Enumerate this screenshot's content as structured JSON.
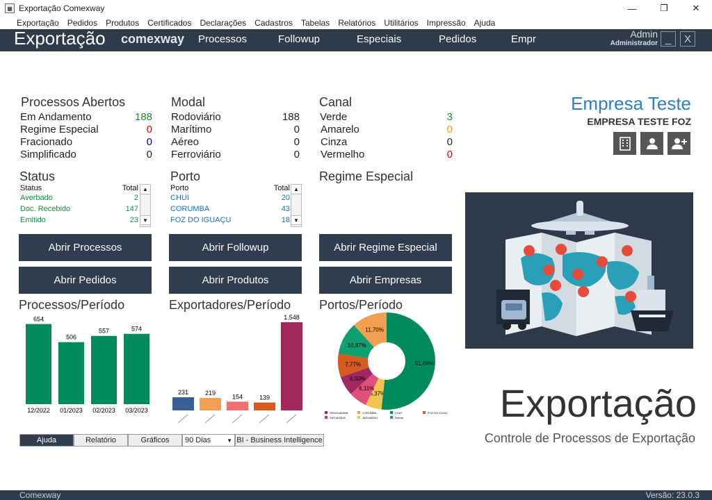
{
  "window": {
    "title": "Exportação Comexway",
    "minimize": "—",
    "maximize": "❐",
    "close": "✕"
  },
  "menu": [
    "Exportação",
    "Pedidos",
    "Produtos",
    "Certificados",
    "Declarações",
    "Cadastros",
    "Tabelas",
    "Relatórios",
    "Utilitários",
    "Impressão",
    "Ajuda"
  ],
  "nav": {
    "brand": "Exportação",
    "brand2": "comexway",
    "items": [
      "Processos",
      "Followup",
      "Especiais",
      "Pedidos",
      "Empr"
    ],
    "user": "Admin",
    "role": "Administrador",
    "min": "_",
    "close": "X"
  },
  "processos": {
    "title": "Processos Abertos",
    "rows": [
      {
        "label": "Em Andamento",
        "value": "188"
      },
      {
        "label": "Regime Especial",
        "value": "0"
      },
      {
        "label": "Fracionado",
        "value": "0"
      },
      {
        "label": "Simplificado",
        "value": "0"
      }
    ]
  },
  "modal": {
    "title": "Modal",
    "rows": [
      {
        "label": "Rodoviário",
        "value": "188"
      },
      {
        "label": "Marítimo",
        "value": "0"
      },
      {
        "label": "Aéreo",
        "value": "0"
      },
      {
        "label": "Ferroviário",
        "value": "0"
      }
    ]
  },
  "canal": {
    "title": "Canal",
    "rows": [
      {
        "label": "Verde",
        "value": "3"
      },
      {
        "label": "Amarelo",
        "value": "0"
      },
      {
        "label": "Cinza",
        "value": "0"
      },
      {
        "label": "Vermelho",
        "value": "0"
      }
    ]
  },
  "status": {
    "title": "Status",
    "col1": "Status",
    "col2": "Total",
    "rows": [
      {
        "label": "Averbado",
        "value": "2"
      },
      {
        "label": "Doc. Recebido",
        "value": "147"
      },
      {
        "label": "Emitido",
        "value": "23"
      }
    ]
  },
  "porto": {
    "title": "Porto",
    "col1": "Porto",
    "col2": "Total",
    "rows": [
      {
        "label": "CHUI",
        "value": "20"
      },
      {
        "label": "CORUMBA",
        "value": "43"
      },
      {
        "label": "FOZ DO IGUAÇU",
        "value": "18"
      }
    ]
  },
  "regime": {
    "title": "Regime Especial"
  },
  "buttons": {
    "processos": "Abrir Processos",
    "followup": "Abrir Followup",
    "regime": "Abrir Regime Especial",
    "pedidos": "Abrir Pedidos",
    "produtos": "Abrir Produtos",
    "empresas": "Abrir Empresas"
  },
  "company": {
    "name": "Empresa Teste",
    "sub": "EMPRESA TESTE FOZ"
  },
  "charts_titles": {
    "a": "Processos/Período",
    "b": "Exportadores/Período",
    "c": "Portos/Período"
  },
  "chart_data": [
    {
      "type": "bar",
      "title": "Processos/Período",
      "categories": [
        "12/2022",
        "01/2023",
        "02/2023",
        "03/2023"
      ],
      "values": [
        654,
        506,
        557,
        574
      ],
      "color": "#008a5e"
    },
    {
      "type": "bar",
      "title": "Exportadores/Período",
      "categories": [
        "",
        "",
        "",
        "",
        ""
      ],
      "values": [
        231,
        219,
        154,
        139,
        1548
      ],
      "labels": [
        "231",
        "219",
        "154",
        "139",
        "1.548"
      ],
      "colors": [
        "#3a5f96",
        "#f0a050",
        "#f07070",
        "#d85a20",
        "#a0285a"
      ]
    },
    {
      "type": "pie",
      "title": "Portos/Período",
      "labels": [
        "5,37%",
        "6,11%",
        "6,50%",
        "7,77%",
        "10,87%",
        "11,70%",
        "51,68%"
      ],
      "values": [
        5.37,
        6.11,
        6.5,
        7.77,
        10.87,
        11.7,
        51.68
      ],
      "colors": [
        "#f2c450",
        "#e0507a",
        "#a02860",
        "#d85a20",
        "#10a070",
        "#f0a050",
        "#008a5e"
      ],
      "legend": [
        "URUGUAIANA",
        "CORUMBA",
        "CHUI",
        "FOZ DO IGUAÇ",
        "SAO BORJA",
        "JAGUARAO",
        "Outros"
      ],
      "legend_colors": [
        "#a02860",
        "#f0a050",
        "#008a5e",
        "#d85a20",
        "#d83050",
        "#f2c450",
        "#10a070"
      ]
    }
  ],
  "hero": {
    "title": "Exportação",
    "subtitle": "Controle de Processos de Exportação"
  },
  "tabs": [
    "Ajuda",
    "Relatório",
    "Gráficos"
  ],
  "period": "90 Dias",
  "bi": "BI - Business Intelligence",
  "footer": {
    "left": "Comexway",
    "right": "Versão: 23.0.3"
  }
}
